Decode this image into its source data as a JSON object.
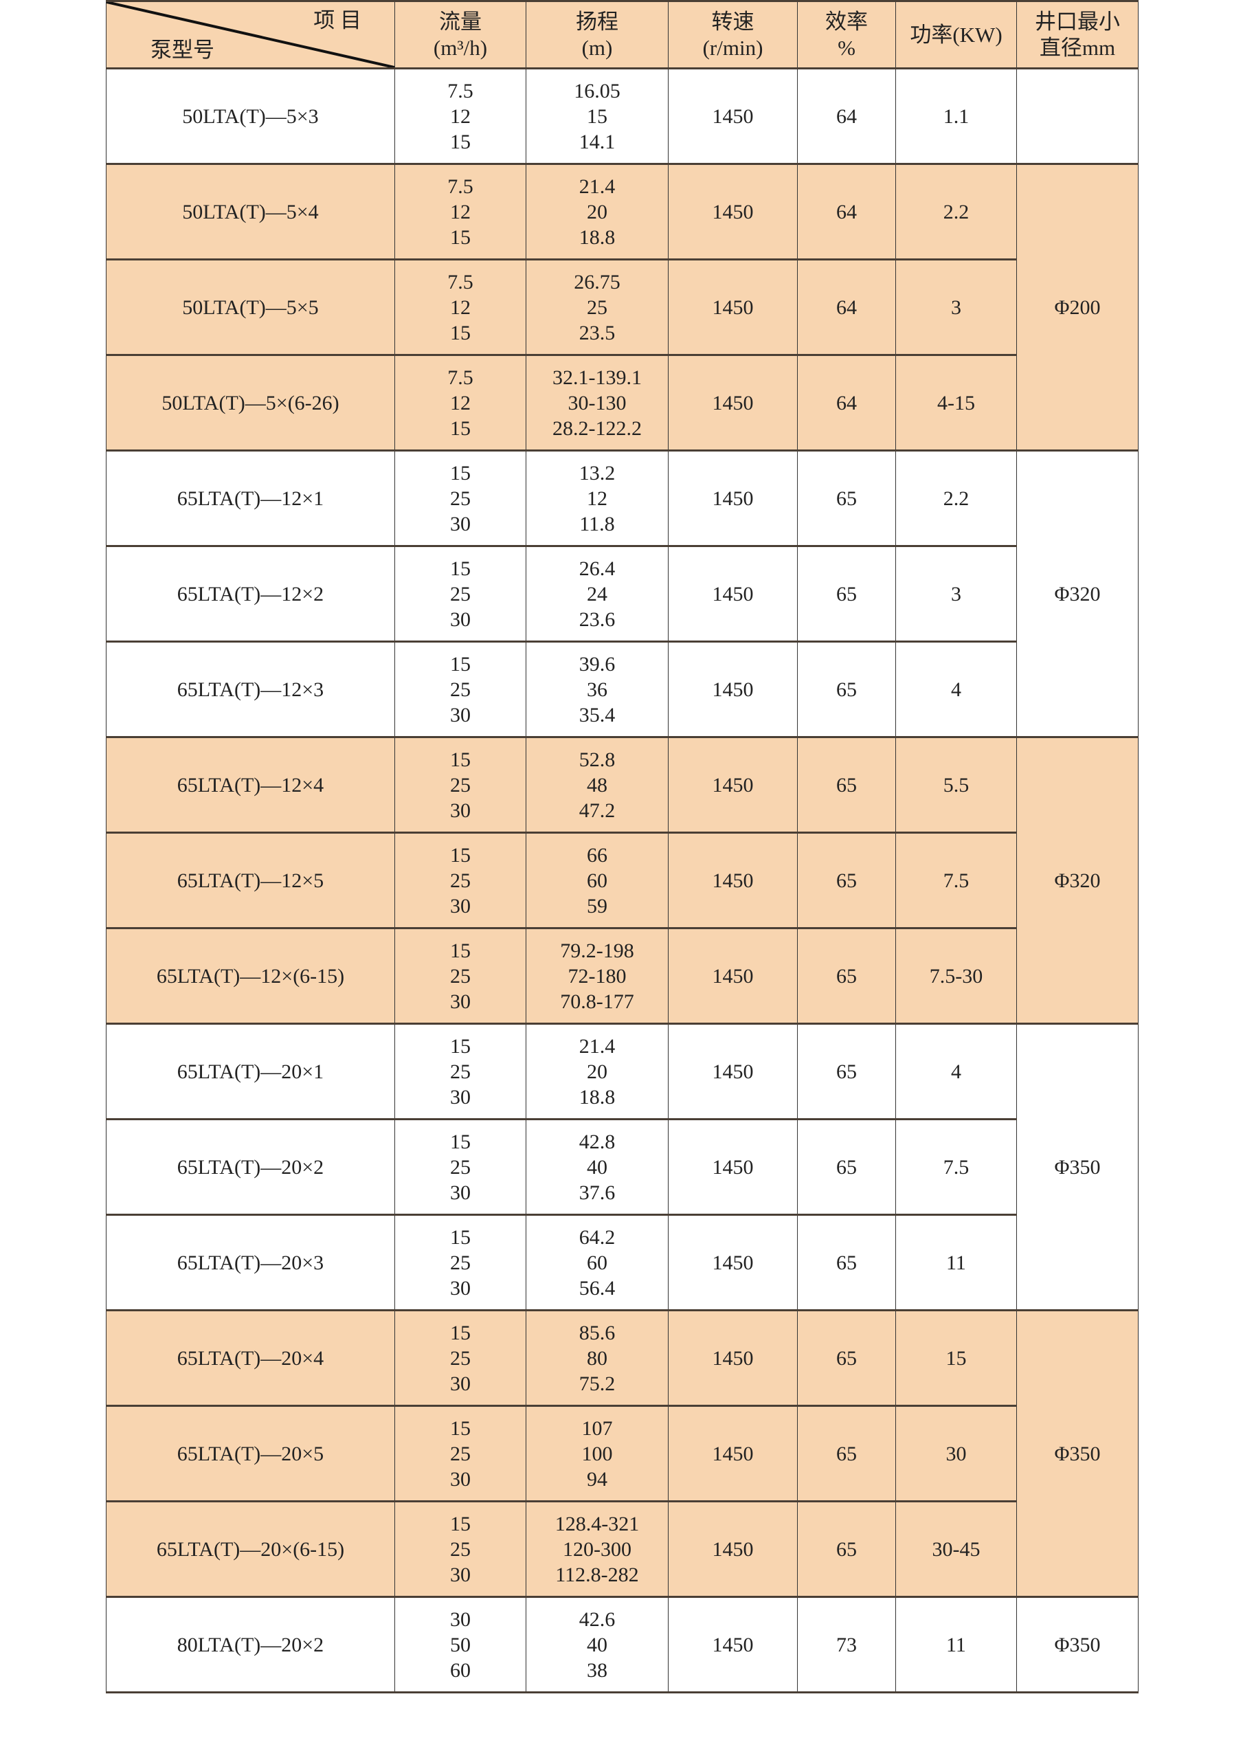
{
  "colors": {
    "shade": "#f8d5b0",
    "border": "#333333"
  },
  "header": {
    "item": "项 目",
    "model": "泵型号",
    "flow": [
      "流量",
      "(m³/h)"
    ],
    "head": [
      "扬程",
      "(m)"
    ],
    "speed": [
      "转速",
      "(r/min)"
    ],
    "eff": [
      "效率",
      "%"
    ],
    "power": "功率(KW)",
    "well": [
      "井口最小",
      "直径mm"
    ]
  },
  "rows": [
    {
      "model": "50LTA(T)—5×3",
      "flow": [
        "7.5",
        "12",
        "15"
      ],
      "head": [
        "16.05",
        "15",
        "14.1"
      ],
      "speed": "1450",
      "eff": "64",
      "power": "1.1",
      "shaded": false
    },
    {
      "model": "50LTA(T)—5×4",
      "flow": [
        "7.5",
        "12",
        "15"
      ],
      "head": [
        "21.4",
        "20",
        "18.8"
      ],
      "speed": "1450",
      "eff": "64",
      "power": "2.2",
      "shaded": true
    },
    {
      "model": "50LTA(T)—5×5",
      "flow": [
        "7.5",
        "12",
        "15"
      ],
      "head": [
        "26.75",
        "25",
        "23.5"
      ],
      "speed": "1450",
      "eff": "64",
      "power": "3",
      "shaded": true
    },
    {
      "model": "50LTA(T)—5×(6-26)",
      "flow": [
        "7.5",
        "12",
        "15"
      ],
      "head": [
        "32.1-139.1",
        "30-130",
        "28.2-122.2"
      ],
      "speed": "1450",
      "eff": "64",
      "power": "4-15",
      "shaded": true
    },
    {
      "model": "65LTA(T)—12×1",
      "flow": [
        "15",
        "25",
        "30"
      ],
      "head": [
        "13.2",
        "12",
        "11.8"
      ],
      "speed": "1450",
      "eff": "65",
      "power": "2.2",
      "shaded": false
    },
    {
      "model": "65LTA(T)—12×2",
      "flow": [
        "15",
        "25",
        "30"
      ],
      "head": [
        "26.4",
        "24",
        "23.6"
      ],
      "speed": "1450",
      "eff": "65",
      "power": "3",
      "shaded": false
    },
    {
      "model": "65LTA(T)—12×3",
      "flow": [
        "15",
        "25",
        "30"
      ],
      "head": [
        "39.6",
        "36",
        "35.4"
      ],
      "speed": "1450",
      "eff": "65",
      "power": "4",
      "shaded": false
    },
    {
      "model": "65LTA(T)—12×4",
      "flow": [
        "15",
        "25",
        "30"
      ],
      "head": [
        "52.8",
        "48",
        "47.2"
      ],
      "speed": "1450",
      "eff": "65",
      "power": "5.5",
      "shaded": true
    },
    {
      "model": "65LTA(T)—12×5",
      "flow": [
        "15",
        "25",
        "30"
      ],
      "head": [
        "66",
        "60",
        "59"
      ],
      "speed": "1450",
      "eff": "65",
      "power": "7.5",
      "shaded": true
    },
    {
      "model": "65LTA(T)—12×(6-15)",
      "flow": [
        "15",
        "25",
        "30"
      ],
      "head": [
        "79.2-198",
        "72-180",
        "70.8-177"
      ],
      "speed": "1450",
      "eff": "65",
      "power": "7.5-30",
      "shaded": true
    },
    {
      "model": "65LTA(T)—20×1",
      "flow": [
        "15",
        "25",
        "30"
      ],
      "head": [
        "21.4",
        "20",
        "18.8"
      ],
      "speed": "1450",
      "eff": "65",
      "power": "4",
      "shaded": false
    },
    {
      "model": "65LTA(T)—20×2",
      "flow": [
        "15",
        "25",
        "30"
      ],
      "head": [
        "42.8",
        "40",
        "37.6"
      ],
      "speed": "1450",
      "eff": "65",
      "power": "7.5",
      "shaded": false
    },
    {
      "model": "65LTA(T)—20×3",
      "flow": [
        "15",
        "25",
        "30"
      ],
      "head": [
        "64.2",
        "60",
        "56.4"
      ],
      "speed": "1450",
      "eff": "65",
      "power": "11",
      "shaded": false
    },
    {
      "model": "65LTA(T)—20×4",
      "flow": [
        "15",
        "25",
        "30"
      ],
      "head": [
        "85.6",
        "80",
        "75.2"
      ],
      "speed": "1450",
      "eff": "65",
      "power": "15",
      "shaded": true
    },
    {
      "model": "65LTA(T)—20×5",
      "flow": [
        "15",
        "25",
        "30"
      ],
      "head": [
        "107",
        "100",
        "94"
      ],
      "speed": "1450",
      "eff": "65",
      "power": "30",
      "shaded": true
    },
    {
      "model": "65LTA(T)—20×(6-15)",
      "flow": [
        "15",
        "25",
        "30"
      ],
      "head": [
        "128.4-321",
        "120-300",
        "112.8-282"
      ],
      "speed": "1450",
      "eff": "65",
      "power": "30-45",
      "shaded": true
    },
    {
      "model": "80LTA(T)—20×2",
      "flow": [
        "30",
        "50",
        "60"
      ],
      "head": [
        "42.6",
        "40",
        "38"
      ],
      "speed": "1450",
      "eff": "73",
      "power": "11",
      "shaded": false
    }
  ],
  "well_groups": [
    {
      "start": 0,
      "span": 1,
      "value": "",
      "shaded": false
    },
    {
      "start": 1,
      "span": 3,
      "value": "Φ200",
      "shaded": true
    },
    {
      "start": 4,
      "span": 3,
      "value": "Φ320",
      "shaded": false
    },
    {
      "start": 7,
      "span": 3,
      "value": "Φ320",
      "shaded": true
    },
    {
      "start": 10,
      "span": 3,
      "value": "Φ350",
      "shaded": false
    },
    {
      "start": 13,
      "span": 3,
      "value": "Φ350",
      "shaded": true
    },
    {
      "start": 16,
      "span": 1,
      "value": "Φ350",
      "shaded": false
    }
  ]
}
